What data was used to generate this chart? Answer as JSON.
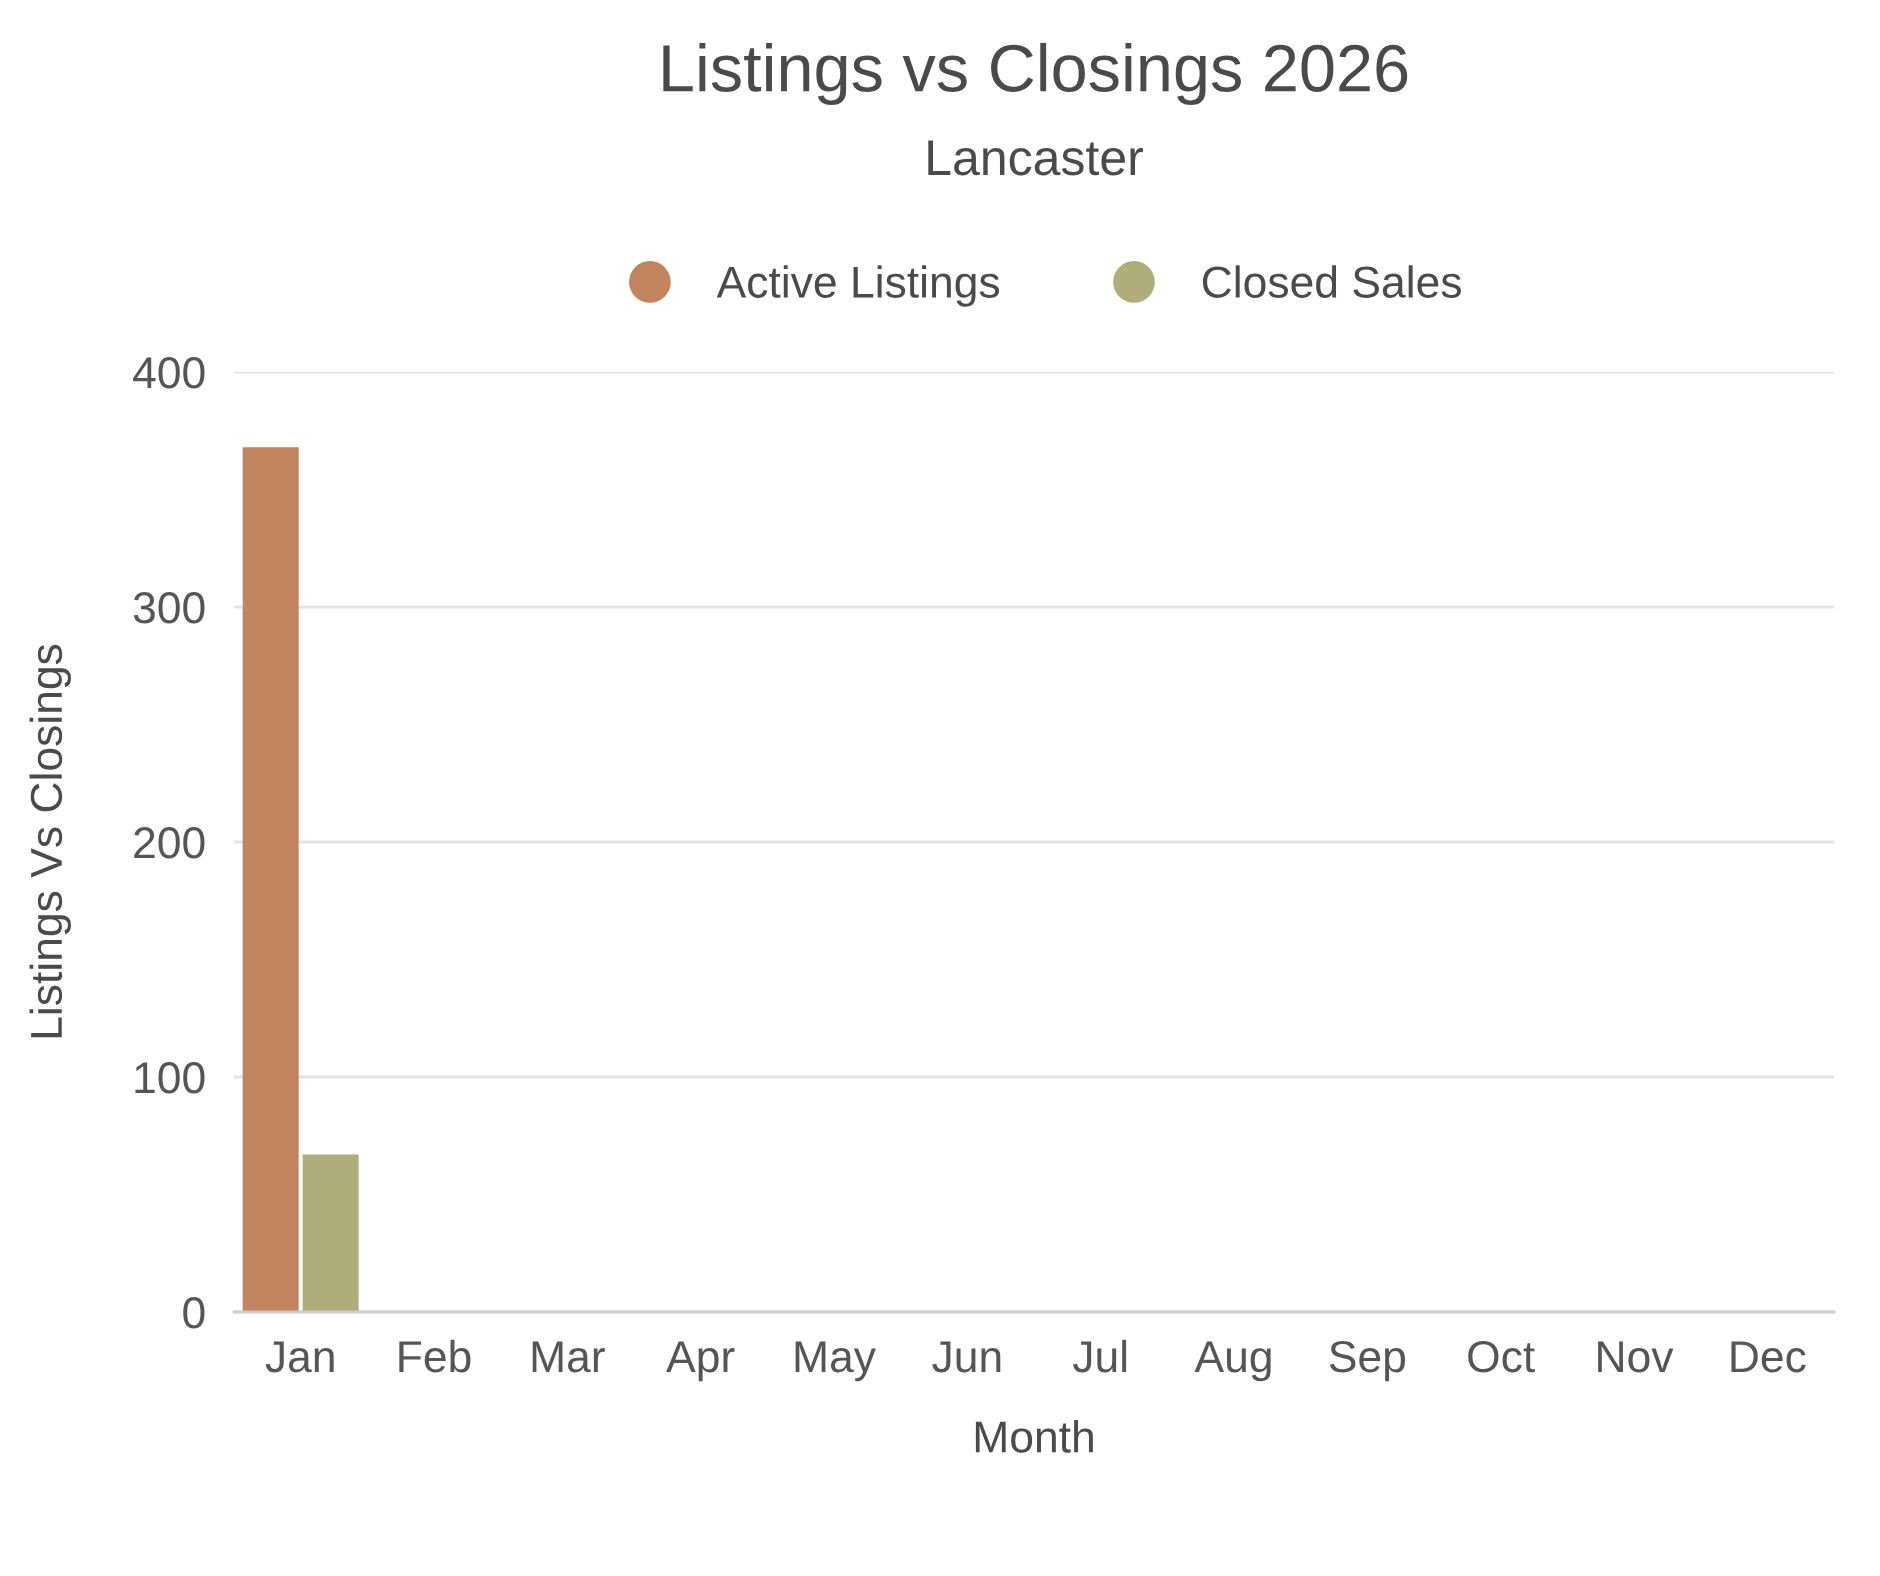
{
  "chart_data": {
    "type": "bar",
    "title": "Listings vs Closings 2026",
    "subtitle": "Lancaster",
    "xlabel": "Month",
    "ylabel": "Listings Vs Closings",
    "categories": [
      "Jan",
      "Feb",
      "Mar",
      "Apr",
      "May",
      "Jun",
      "Jul",
      "Aug",
      "Sep",
      "Oct",
      "Nov",
      "Dec"
    ],
    "series": [
      {
        "name": "Active Listings",
        "color": "#c1845f",
        "values": [
          368,
          null,
          null,
          null,
          null,
          null,
          null,
          null,
          null,
          null,
          null,
          null
        ]
      },
      {
        "name": "Closed Sales",
        "color": "#afae7b",
        "values": [
          67,
          null,
          null,
          null,
          null,
          null,
          null,
          null,
          null,
          null,
          null,
          null
        ]
      }
    ],
    "ylim": [
      0,
      400
    ],
    "yticks": [
      0,
      100,
      200,
      300,
      400
    ],
    "grid": "y",
    "legend": "top"
  }
}
